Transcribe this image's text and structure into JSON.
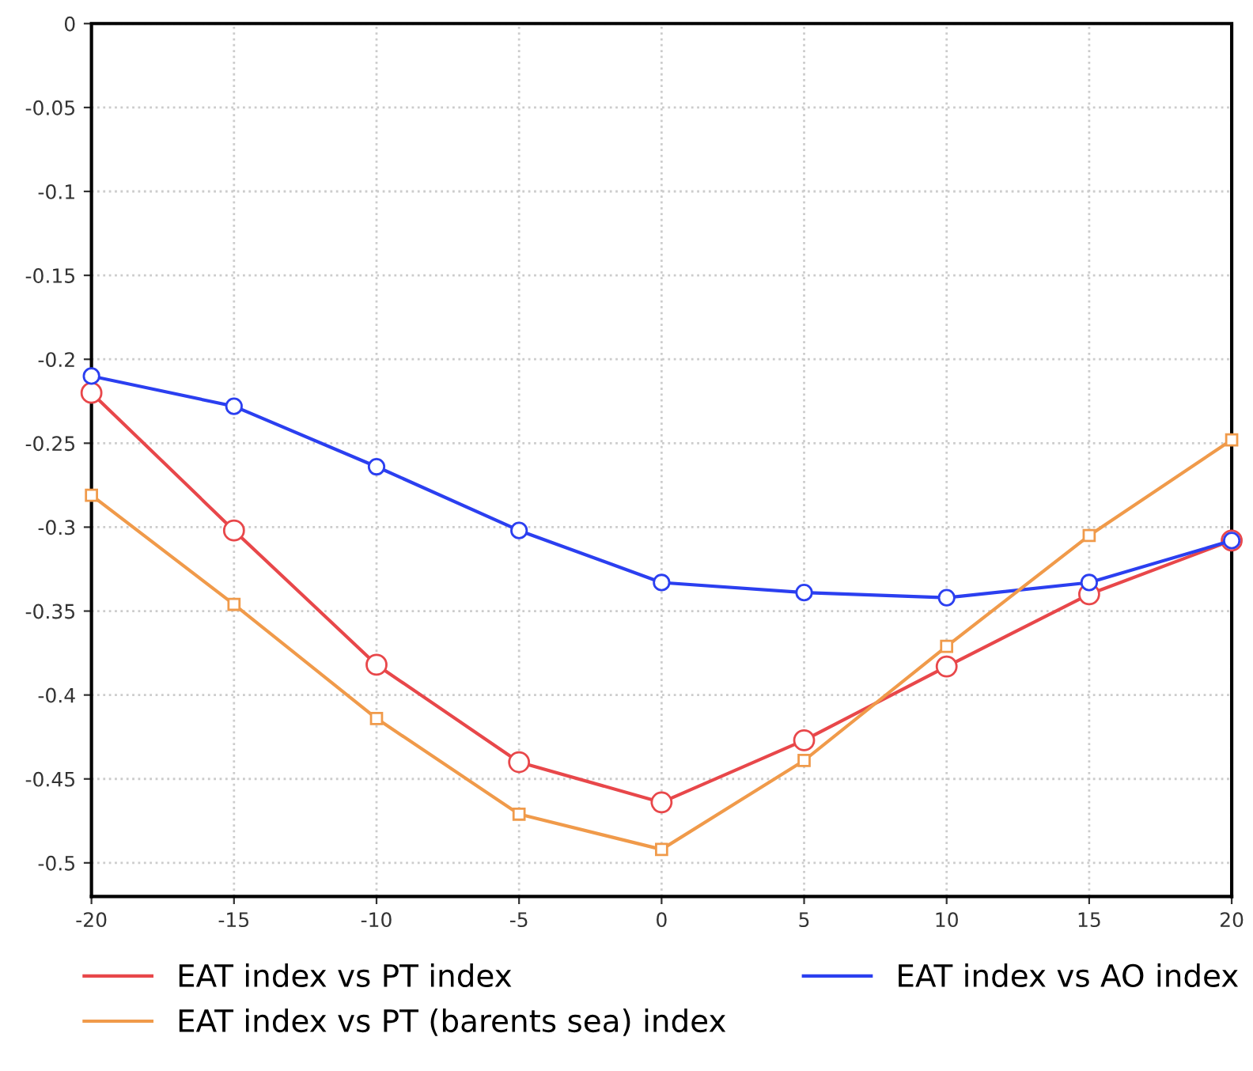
{
  "chart_data": {
    "type": "line",
    "x": [
      -20,
      -15,
      -10,
      -5,
      0,
      5,
      10,
      15,
      20
    ],
    "series": [
      {
        "name": "EAT index vs PT index",
        "color": "#e8474a",
        "marker": "circle",
        "values": [
          -0.22,
          -0.302,
          -0.382,
          -0.44,
          -0.464,
          -0.427,
          -0.383,
          -0.34,
          -0.308
        ]
      },
      {
        "name": "EAT index vs AO index",
        "color": "#2b3ff0",
        "marker": "circle",
        "values": [
          -0.21,
          -0.228,
          -0.264,
          -0.302,
          -0.333,
          -0.339,
          -0.342,
          -0.333,
          -0.308
        ]
      },
      {
        "name": "EAT index vs PT (barents sea) index",
        "color": "#f09a4a",
        "marker": "square",
        "values": [
          -0.281,
          -0.346,
          -0.414,
          -0.471,
          -0.492,
          -0.439,
          -0.371,
          -0.305,
          -0.248
        ]
      }
    ],
    "xlim": [
      -20,
      20
    ],
    "xticks": [
      -20,
      -15,
      -10,
      -5,
      0,
      5,
      10,
      15,
      20
    ],
    "ylim": [
      -0.52,
      0
    ],
    "yticks": [
      -0.5,
      -0.45,
      -0.4,
      -0.35,
      -0.3,
      -0.25,
      -0.2,
      -0.15,
      -0.1,
      -0.05,
      0
    ],
    "grid": true,
    "legend": "bottom",
    "line_style": "solid"
  }
}
